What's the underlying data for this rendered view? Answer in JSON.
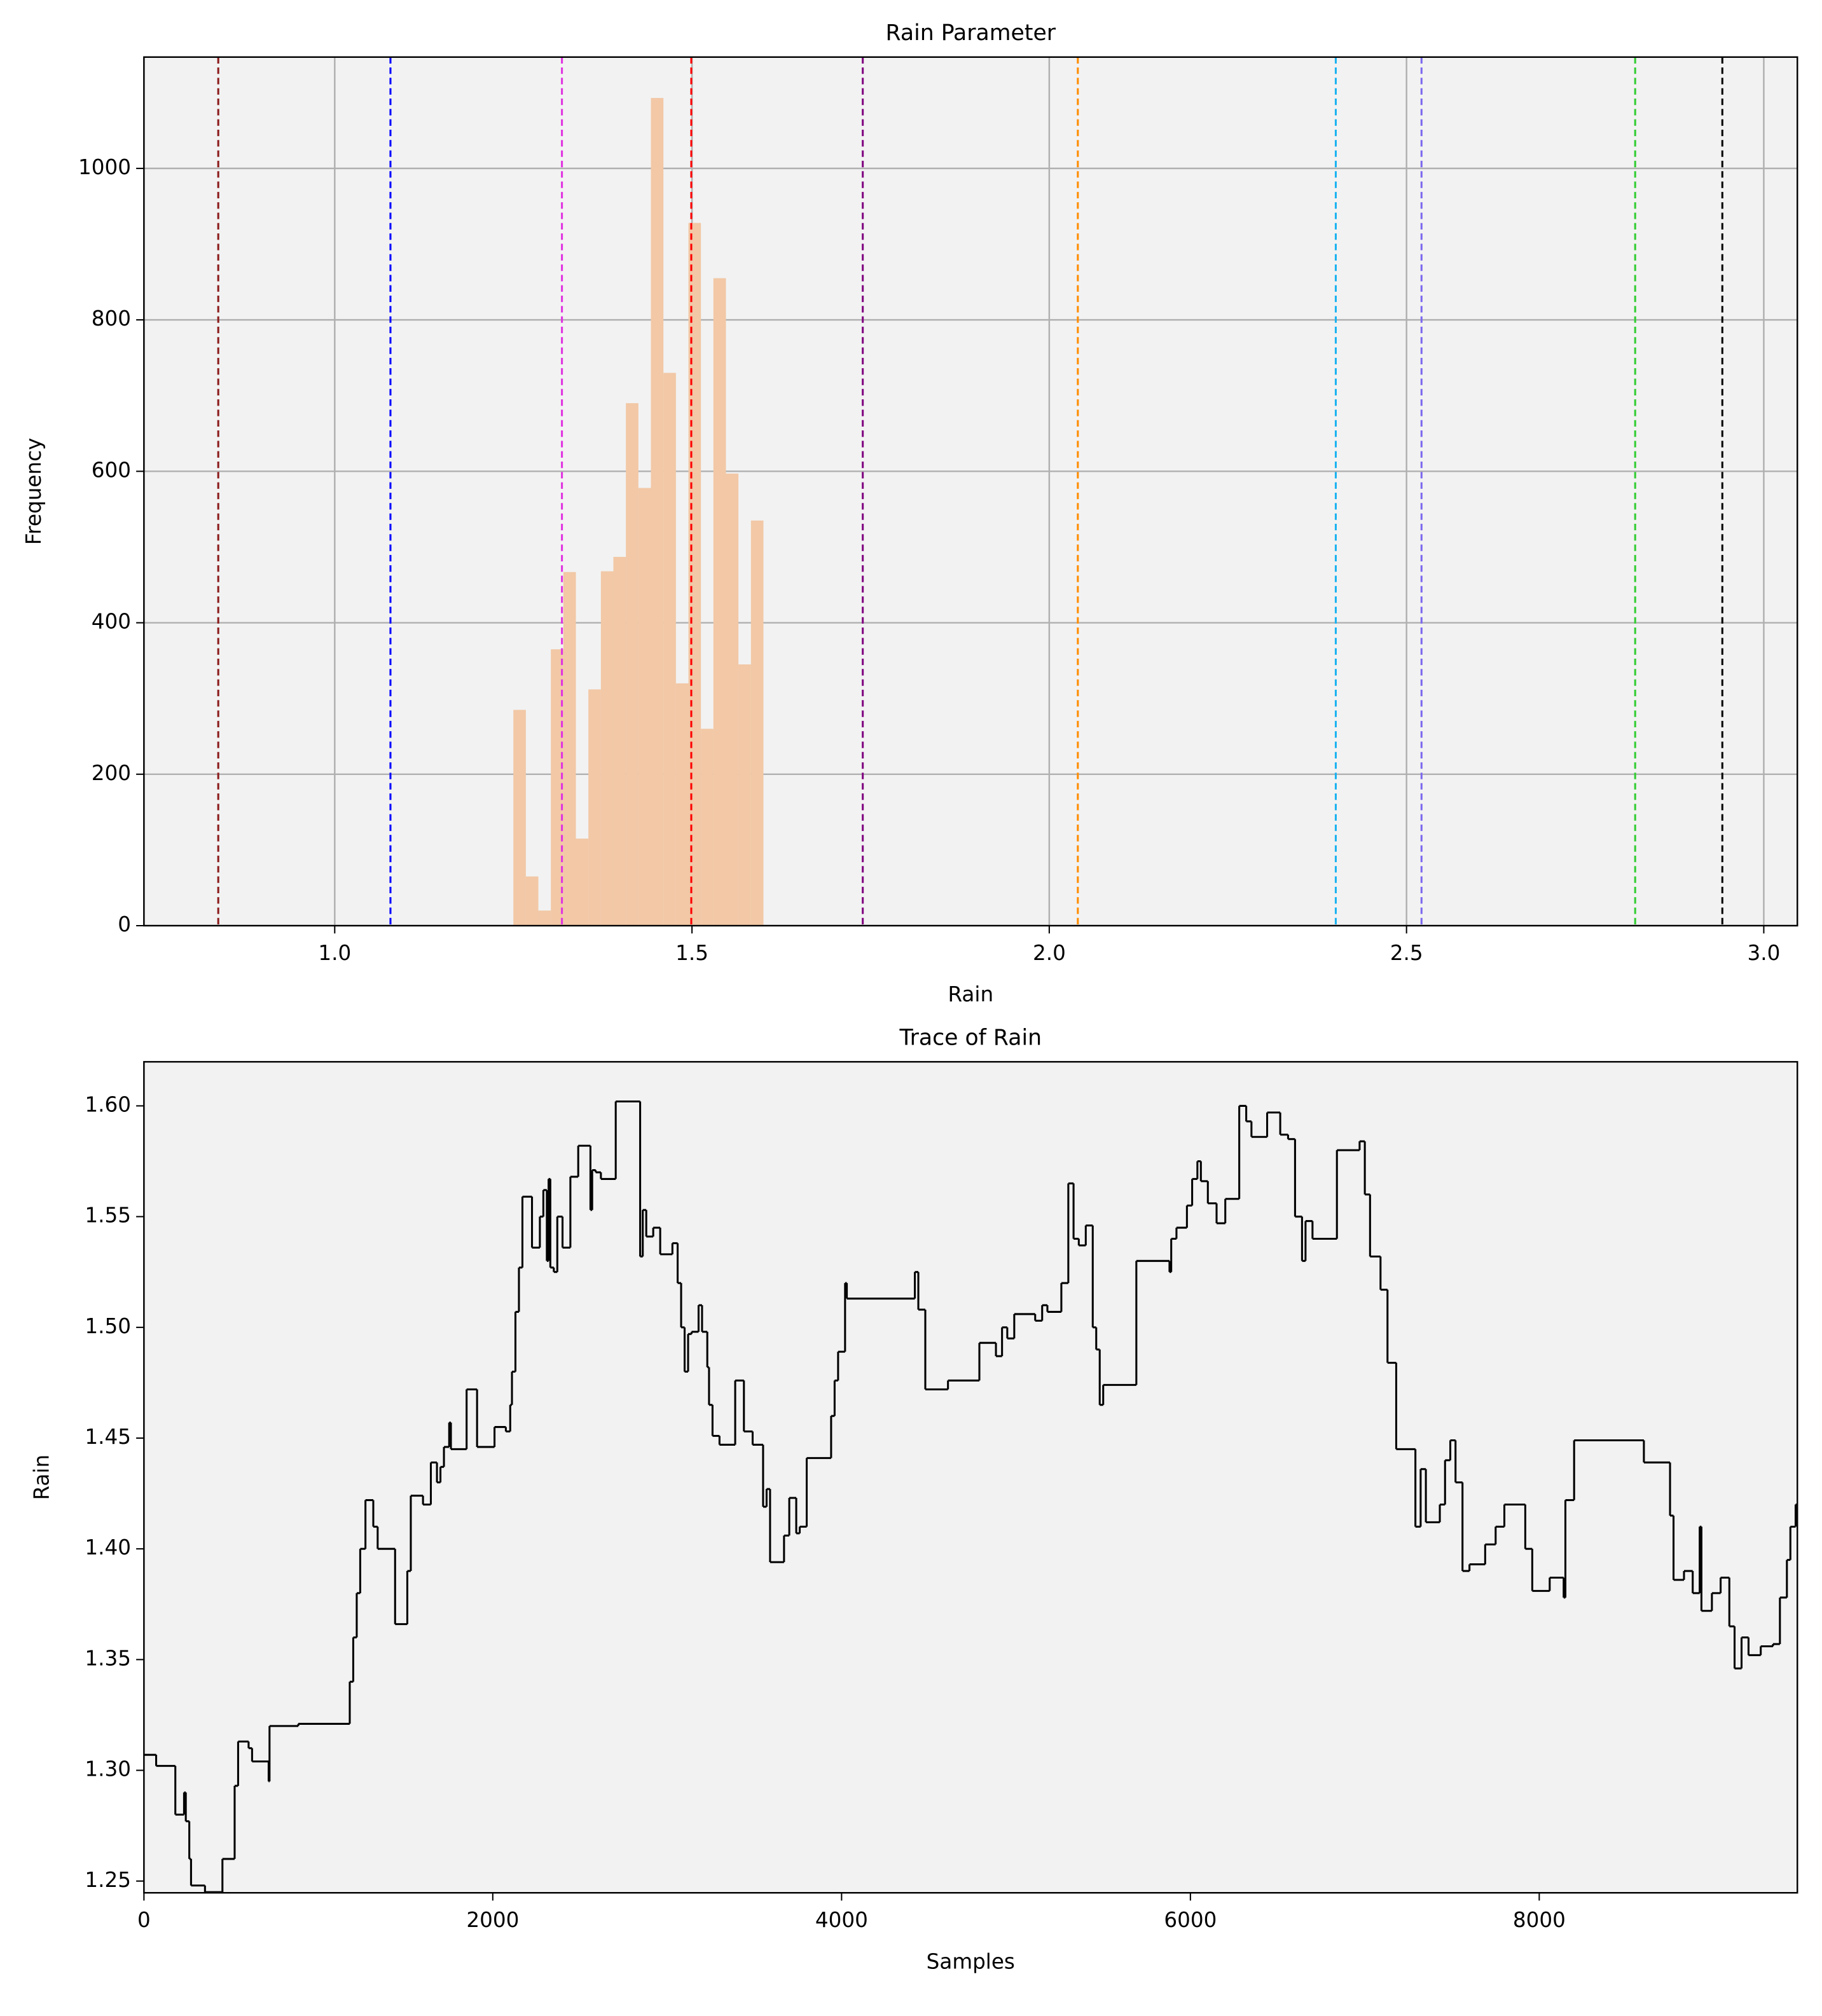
{
  "chart_data": [
    {
      "type": "histogram",
      "title": "Rain Parameter",
      "xlabel": "Rain",
      "ylabel": "Frequency",
      "bins": [
        1.25,
        1.2675,
        1.285,
        1.3025,
        1.32,
        1.3375,
        1.355,
        1.3725,
        1.39,
        1.4075,
        1.425,
        1.4425,
        1.46,
        1.4775,
        1.495,
        1.5125,
        1.53,
        1.5475,
        1.565,
        1.5825,
        1.6
      ],
      "values": [
        285,
        65,
        20,
        365,
        467,
        115,
        312,
        468,
        487,
        690,
        578,
        1093,
        730,
        320,
        928,
        260,
        855,
        597,
        345,
        535
      ],
      "color": "#f2c8a6",
      "vlines": [
        {
          "x": 0.837,
          "color": "#8b1a1a"
        },
        {
          "x": 1.078,
          "color": "#0000ff"
        },
        {
          "x": 1.318,
          "color": "#e033e0"
        },
        {
          "x": 1.499,
          "color": "#ff0000"
        },
        {
          "x": 1.739,
          "color": "#800080"
        },
        {
          "x": 2.04,
          "color": "#ff8c00"
        },
        {
          "x": 2.401,
          "color": "#1ab2f0"
        },
        {
          "x": 2.521,
          "color": "#7b68ee"
        },
        {
          "x": 2.82,
          "color": "#32cd32"
        },
        {
          "x": 2.942,
          "color": "#000000"
        }
      ],
      "xlim": [
        0.733,
        3.047
      ],
      "ylim": [
        0,
        1147
      ],
      "xticks": [
        {
          "value": 1,
          "label": "1.0"
        },
        1.5,
        {
          "value": 2,
          "label": "2.0"
        },
        2.5,
        {
          "value": 3,
          "label": "3.0"
        }
      ],
      "yticks": [
        0,
        200,
        400,
        600,
        800,
        1000
      ],
      "grid": true
    },
    {
      "type": "step",
      "title": "Trace of Rain",
      "xlabel": "Samples",
      "ylabel": "Rain",
      "color": "#000000",
      "x": [
        0,
        70,
        180,
        230,
        240,
        260,
        270,
        350,
        450,
        520,
        540,
        600,
        620,
        715,
        720,
        885,
        1180,
        1200,
        1220,
        1240,
        1270,
        1315,
        1340,
        1440,
        1510,
        1530,
        1600,
        1645,
        1680,
        1700,
        1720,
        1750,
        1760,
        1850,
        1910,
        2010,
        2075,
        2100,
        2110,
        2130,
        2150,
        2170,
        2225,
        2270,
        2290,
        2310,
        2320,
        2330,
        2350,
        2370,
        2400,
        2445,
        2490,
        2560,
        2570,
        2590,
        2620,
        2705,
        2845,
        2860,
        2880,
        2920,
        2960,
        3030,
        3060,
        3080,
        3100,
        3120,
        3140,
        3180,
        3200,
        3230,
        3240,
        3260,
        3300,
        3390,
        3440,
        3490,
        3550,
        3570,
        3590,
        3670,
        3700,
        3740,
        3760,
        3800,
        3940,
        3960,
        3980,
        4020,
        4030,
        4420,
        4440,
        4480,
        4610,
        4790,
        4885,
        4920,
        4950,
        4990,
        5110,
        5150,
        5180,
        5260,
        5300,
        5330,
        5360,
        5400,
        5440,
        5460,
        5480,
        5500,
        5690,
        5880,
        5890,
        5920,
        5980,
        6010,
        6040,
        6060,
        6100,
        6150,
        6200,
        6280,
        6320,
        6350,
        6440,
        6515,
        6560,
        6600,
        6640,
        6660,
        6700,
        6840,
        6970,
        7000,
        7030,
        7090,
        7130,
        7180,
        7290,
        7320,
        7350,
        7430,
        7460,
        7490,
        7520,
        7560,
        7600,
        7690,
        7750,
        7800,
        7920,
        7960,
        8060,
        8140,
        8150,
        8200,
        8600,
        8750,
        8770,
        8830,
        8880,
        8920,
        8930,
        8990,
        9040,
        9090,
        9120,
        9160,
        9200,
        9270,
        9340,
        9380,
        9420,
        9440,
        9470
      ],
      "y": [
        1.307,
        1.302,
        1.28,
        1.29,
        1.277,
        1.26,
        1.248,
        1.245,
        1.26,
        1.293,
        1.313,
        1.31,
        1.304,
        1.295,
        1.32,
        1.321,
        1.34,
        1.36,
        1.38,
        1.4,
        1.422,
        1.41,
        1.4,
        1.366,
        1.39,
        1.424,
        1.42,
        1.439,
        1.43,
        1.437,
        1.446,
        1.457,
        1.445,
        1.472,
        1.446,
        1.455,
        1.453,
        1.465,
        1.48,
        1.507,
        1.527,
        1.559,
        1.536,
        1.55,
        1.562,
        1.53,
        1.567,
        1.527,
        1.525,
        1.55,
        1.536,
        1.568,
        1.582,
        1.553,
        1.571,
        1.57,
        1.567,
        1.602,
        1.532,
        1.553,
        1.541,
        1.545,
        1.533,
        1.538,
        1.52,
        1.5,
        1.48,
        1.497,
        1.498,
        1.51,
        1.498,
        1.482,
        1.465,
        1.451,
        1.447,
        1.476,
        1.453,
        1.447,
        1.419,
        1.427,
        1.394,
        1.406,
        1.423,
        1.407,
        1.41,
        1.441,
        1.46,
        1.476,
        1.489,
        1.52,
        1.513,
        1.525,
        1.508,
        1.472,
        1.476,
        1.493,
        1.487,
        1.5,
        1.495,
        1.506,
        1.503,
        1.51,
        1.507,
        1.52,
        1.565,
        1.54,
        1.537,
        1.546,
        1.5,
        1.49,
        1.465,
        1.474,
        1.53,
        1.525,
        1.54,
        1.545,
        1.555,
        1.567,
        1.575,
        1.566,
        1.556,
        1.547,
        1.558,
        1.6,
        1.593,
        1.586,
        1.597,
        1.587,
        1.585,
        1.55,
        1.53,
        1.548,
        1.54,
        1.58,
        1.584,
        1.56,
        1.532,
        1.517,
        1.484,
        1.445,
        1.41,
        1.436,
        1.412,
        1.42,
        1.44,
        1.449,
        1.43,
        1.39,
        1.393,
        1.402,
        1.41,
        1.42,
        1.4,
        1.381,
        1.387,
        1.378,
        1.422,
        1.449,
        1.439,
        1.415,
        1.386,
        1.39,
        1.38,
        1.41,
        1.372,
        1.38,
        1.387,
        1.365,
        1.346,
        1.36,
        1.352,
        1.356,
        1.357,
        1.378,
        1.395,
        1.41,
        1.42
      ],
      "xlim": [
        0,
        9480
      ],
      "ylim": [
        1.2447,
        1.6199
      ],
      "xticks": [
        0,
        2000,
        4000,
        6000,
        8000
      ],
      "yticks": [
        1.25,
        {
          "value": 1.3,
          "label": "1.30"
        },
        1.35,
        {
          "value": 1.4,
          "label": "1.40"
        },
        1.45,
        {
          "value": 1.5,
          "label": "1.50"
        },
        1.55,
        {
          "value": 1.6,
          "label": "1.60"
        }
      ]
    }
  ]
}
